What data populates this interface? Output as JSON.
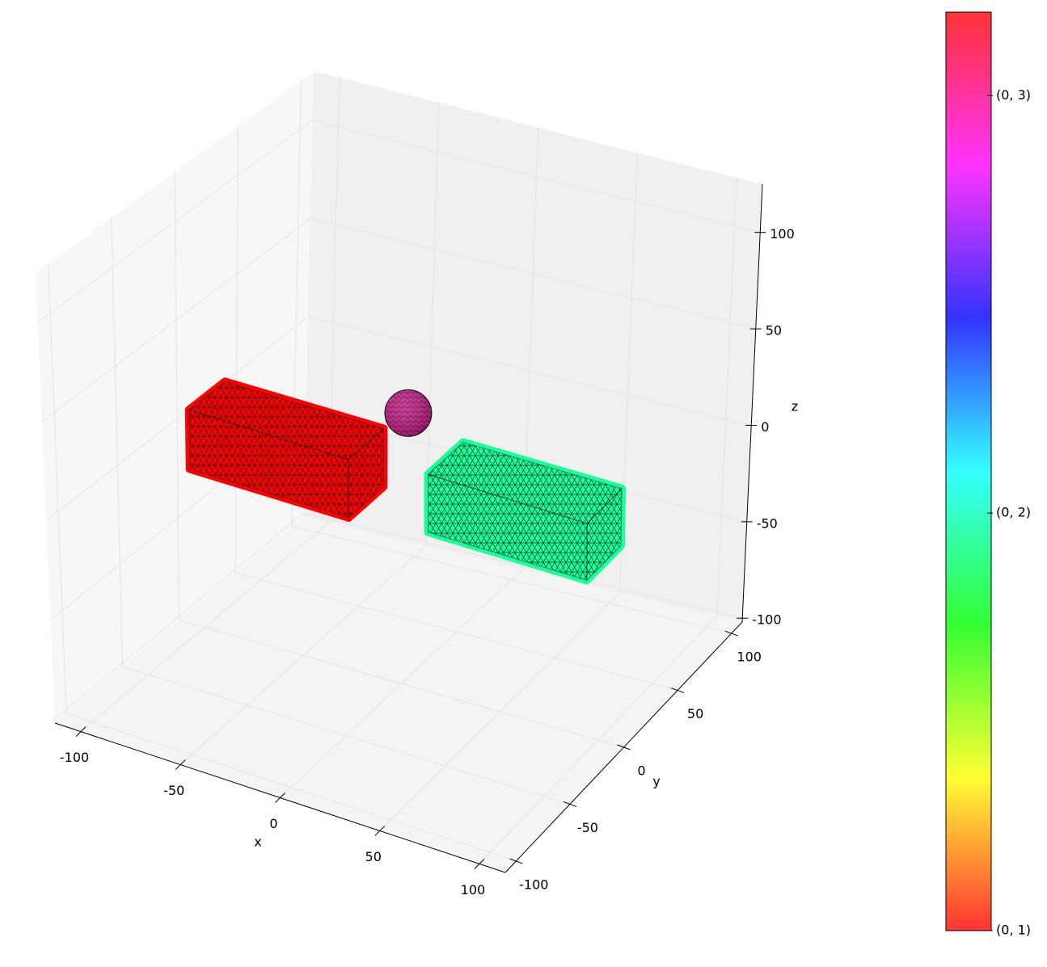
{
  "chart_data": {
    "type": "mesh3d",
    "xlabel": "x",
    "ylabel": "y",
    "zlabel": "z",
    "xlim": [
      -113,
      113
    ],
    "ylim": [
      -110,
      110
    ],
    "zlim": [
      -102,
      125
    ],
    "xticks": [
      -100,
      -50,
      0,
      50,
      100
    ],
    "yticks": [
      -100,
      -50,
      0,
      50,
      100
    ],
    "zticks": [
      -100,
      -50,
      0,
      50,
      100
    ],
    "grid": true,
    "objects": [
      {
        "shape": "box",
        "center": [
          -59,
          2,
          0
        ],
        "size": [
          80,
          30,
          30
        ],
        "color": "#ff0000"
      },
      {
        "shape": "box",
        "center": [
          57,
          9,
          0
        ],
        "size": [
          80,
          30,
          30
        ],
        "color": "#1aff9c"
      },
      {
        "shape": "sphere",
        "center": [
          -29,
          55,
          0
        ],
        "radius": 12,
        "color": "#d81e96"
      }
    ],
    "colorbar": {
      "colormap": "hsv",
      "clim": [
        1,
        3.2
      ],
      "ticks": [
        {
          "value": 1,
          "label": "(0, 1)"
        },
        {
          "value": 2,
          "label": "(0, 2)"
        },
        {
          "value": 3,
          "label": "(0, 3)"
        }
      ]
    }
  }
}
